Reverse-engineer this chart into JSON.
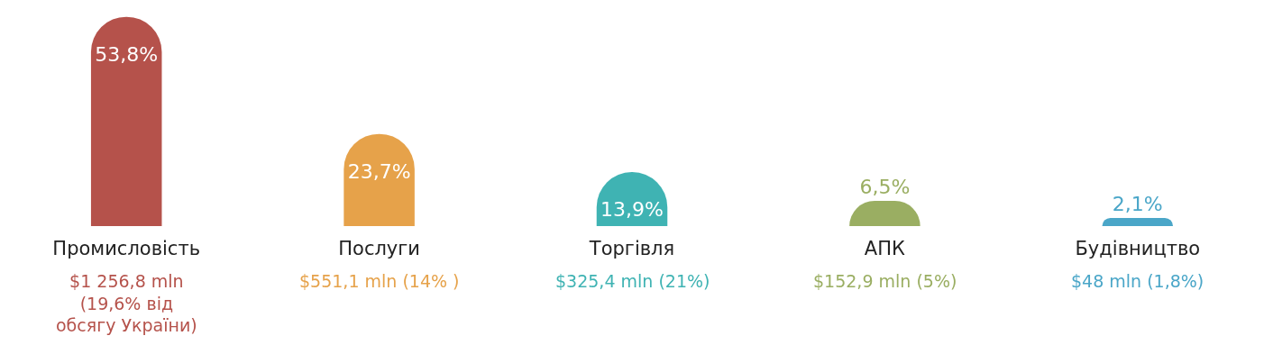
{
  "chart_data": {
    "type": "bar",
    "categories": [
      "Промисловість",
      "Послуги",
      "Торгівля",
      "АПК",
      "Будівництво"
    ],
    "values": [
      53.8,
      23.7,
      13.9,
      6.5,
      2.1
    ],
    "value_labels": [
      "53,8%",
      "23,7%",
      "13,9%",
      "6,5%",
      "2,1%"
    ],
    "colors": [
      "#b5524b",
      "#e6a24a",
      "#3fb3b3",
      "#9aae62",
      "#4aa6c8"
    ],
    "annotations": [
      "$1 256,8 mln\n(19,6% від\nобсягу України)",
      "$551,1 mln (14% )",
      "$325,4 mln (21%)",
      "$152,9 mln (5%)",
      "$48 mln (1,8%)"
    ]
  }
}
